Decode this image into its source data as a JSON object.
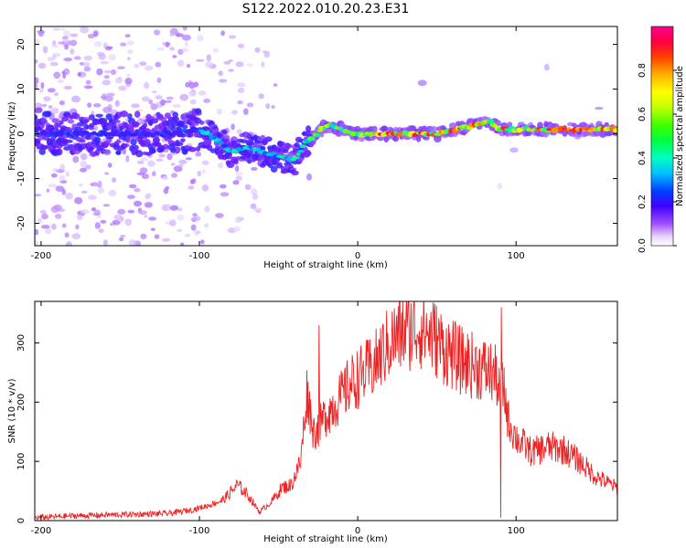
{
  "figure": {
    "title": "S122.2022.010.20.23.E31"
  },
  "colors": {
    "snr_line": "#ee2222",
    "frame": "#000000"
  },
  "chart_data": [
    {
      "type": "heatmap",
      "xlabel": "Height of straight line (km)",
      "ylabel": "Frequency (Hz)",
      "xlim": [
        -204,
        164
      ],
      "ylim": [
        -25,
        24
      ],
      "xticks": [
        -200,
        -100,
        0,
        100
      ],
      "yticks": [
        -20,
        -10,
        0,
        10,
        20
      ],
      "colormap": "rainbow (white-purple-blue-cyan-green-yellow-orange-red-magenta)",
      "colorbar": {
        "label": "Normalized spectral amplitude",
        "range": [
          0,
          1
        ],
        "ticks": [
          "0.0",
          "0.2",
          "0.4",
          "0.6",
          "0.8"
        ]
      },
      "ridge": [
        {
          "x": -200,
          "f": 0
        },
        {
          "x": -120,
          "f": 0
        },
        {
          "x": -100,
          "f": 1
        },
        {
          "x": -90,
          "f": -1
        },
        {
          "x": -80,
          "f": -4
        },
        {
          "x": -70,
          "f": -3
        },
        {
          "x": -60,
          "f": -4
        },
        {
          "x": -50,
          "f": -5
        },
        {
          "x": -40,
          "f": -6
        },
        {
          "x": -33,
          "f": -2
        },
        {
          "x": -25,
          "f": 0
        },
        {
          "x": -20,
          "f": 2
        },
        {
          "x": -10,
          "f": 1
        },
        {
          "x": 0,
          "f": 0
        },
        {
          "x": 20,
          "f": 0
        },
        {
          "x": 50,
          "f": 0
        },
        {
          "x": 75,
          "f": 2
        },
        {
          "x": 82,
          "f": 3
        },
        {
          "x": 90,
          "f": 1
        },
        {
          "x": 110,
          "f": 1
        },
        {
          "x": 125,
          "f": 1
        },
        {
          "x": 164,
          "f": 1
        }
      ]
    },
    {
      "type": "line",
      "xlabel": "Height of straight line (km)",
      "ylabel": "SNR (10 * v/v)",
      "xlim": [
        -204,
        164
      ],
      "ylim": [
        0,
        370
      ],
      "xticks": [
        -200,
        -100,
        0,
        100
      ],
      "yticks": [
        0,
        100,
        200,
        300
      ],
      "series": [
        {
          "x": [
            -204,
            -180,
            -150,
            -120,
            -105,
            -95,
            -85,
            -76,
            -70,
            -62,
            -55,
            -48,
            -42,
            -36,
            -32,
            -28,
            -24,
            -20,
            -15,
            -10,
            -5,
            0,
            10,
            20,
            30,
            40,
            48,
            55,
            65,
            75,
            85,
            88,
            90,
            92,
            95,
            100,
            110,
            120,
            130,
            140,
            150,
            164
          ],
          "y": [
            5,
            8,
            10,
            12,
            18,
            25,
            35,
            60,
            45,
            15,
            30,
            55,
            60,
            100,
            220,
            150,
            160,
            180,
            195,
            210,
            230,
            240,
            260,
            300,
            320,
            325,
            310,
            290,
            270,
            260,
            250,
            240,
            200,
            230,
            170,
            140,
            115,
            125,
            120,
            100,
            75,
            55
          ]
        }
      ]
    }
  ]
}
